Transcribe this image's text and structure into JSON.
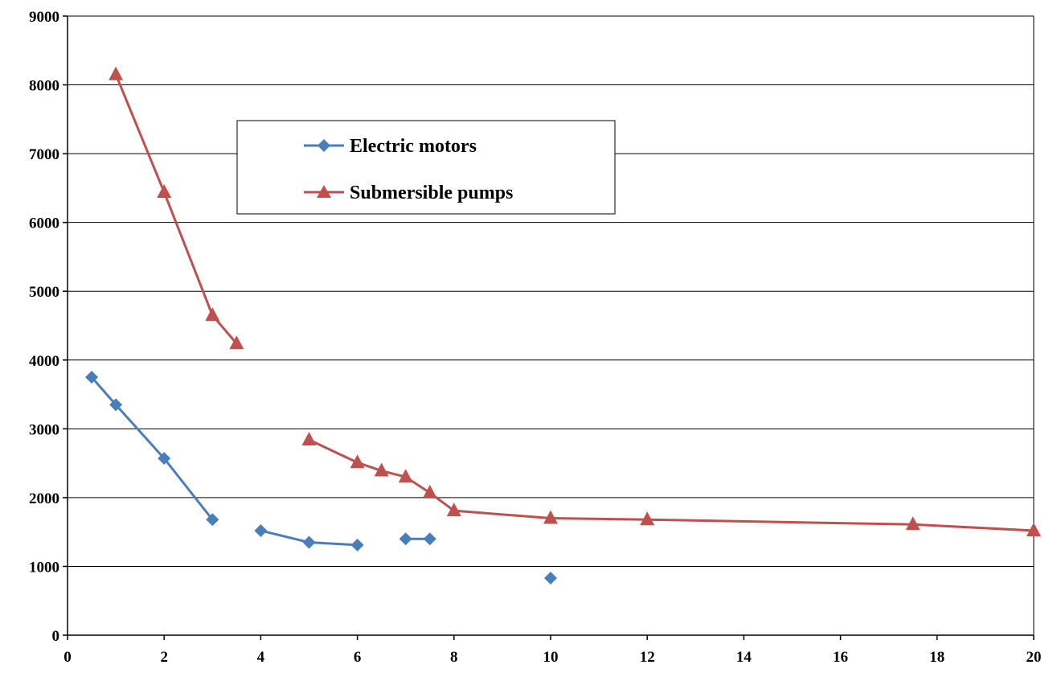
{
  "chart_data": {
    "type": "line",
    "title": "",
    "xlabel": "",
    "ylabel": "",
    "xlim": [
      0,
      20
    ],
    "ylim": [
      0,
      9000
    ],
    "x_ticks": [
      0,
      2,
      4,
      6,
      8,
      10,
      12,
      14,
      16,
      18,
      20
    ],
    "y_ticks": [
      0,
      1000,
      2000,
      3000,
      4000,
      5000,
      6000,
      7000,
      8000,
      9000
    ],
    "grid": {
      "horizontal": true,
      "vertical": false
    },
    "legend_position": "upper-left-center",
    "series": [
      {
        "name": "Electric motors",
        "color": "#4a7ebb",
        "marker": "diamond",
        "segments": [
          [
            [
              0.5,
              3750
            ],
            [
              1,
              3350
            ],
            [
              2,
              2570
            ],
            [
              3,
              1680
            ]
          ],
          [
            [
              4,
              1520
            ],
            [
              5,
              1350
            ],
            [
              6,
              1310
            ]
          ],
          [
            [
              7,
              1400
            ],
            [
              7.5,
              1400
            ]
          ],
          [
            [
              10,
              830
            ]
          ]
        ]
      },
      {
        "name": "Submersible pumps",
        "color": "#c0504d",
        "marker": "triangle",
        "segments": [
          [
            [
              1,
              8150
            ],
            [
              2,
              6440
            ],
            [
              3,
              4650
            ],
            [
              3.5,
              4240
            ]
          ],
          [
            [
              5,
              2840
            ],
            [
              6,
              2510
            ],
            [
              6.5,
              2390
            ],
            [
              7,
              2300
            ],
            [
              7.5,
              2070
            ],
            [
              8,
              1810
            ],
            [
              10,
              1700
            ],
            [
              12,
              1680
            ],
            [
              17.5,
              1610
            ],
            [
              20,
              1520
            ]
          ]
        ]
      }
    ]
  }
}
